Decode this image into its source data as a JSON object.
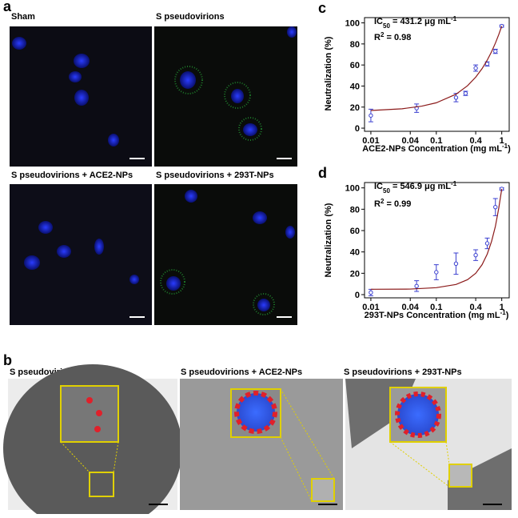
{
  "panels": {
    "a": "a",
    "b": "b",
    "c": "c",
    "d": "d"
  },
  "panel_a": {
    "labels": [
      "Sham",
      "S pseudovirions",
      "S pseudovirions + ACE2-NPs",
      "S pseudovirions + 293T-NPs"
    ]
  },
  "panel_b": {
    "labels": [
      "S pseudovirions",
      "S pseudovirions + ACE2-NPs",
      "S pseudovirions + 293T-NPs"
    ]
  },
  "chart_data": [
    {
      "type": "scatter",
      "xlabel": [
        "ACE2-NPs Concentration (mg mL",
        "-1",
        ")"
      ],
      "ylabel": "Neutralization (%)",
      "annotation": {
        "ic50": [
          "IC",
          "50",
          " = 431.2 μg mL",
          "-1"
        ],
        "r2": [
          "R",
          "2",
          " = 0.98"
        ]
      },
      "log_x": true,
      "xlim": [
        0.008,
        1.3
      ],
      "ylim": [
        -3,
        105
      ],
      "xticks": [
        0.01,
        0.04,
        0.1,
        0.4,
        1
      ],
      "yticks": [
        0,
        20,
        40,
        60,
        80,
        100
      ],
      "series": [
        {
          "color": "#3a3fd0",
          "x": [
            0.01,
            0.05,
            0.2,
            0.28,
            0.4,
            0.6,
            0.8,
            1.0
          ],
          "values": [
            12,
            19,
            29,
            33,
            57,
            61,
            73,
            97
          ],
          "errors": [
            6,
            4,
            4,
            2,
            3,
            2,
            2,
            1
          ]
        },
        {
          "color": "#8b1a1a",
          "x": [
            0.01,
            0.03,
            0.06,
            0.1,
            0.2,
            0.3,
            0.4,
            0.5,
            0.6,
            0.7,
            0.8,
            0.9,
            1.0
          ],
          "values": [
            16.8,
            18.4,
            20.9,
            24.1,
            32.2,
            40.3,
            48.4,
            56.5,
            64.6,
            72.7,
            80.8,
            88.9,
            97
          ]
        }
      ]
    },
    {
      "type": "scatter",
      "xlabel": [
        "293T-NPs Concentration (mg mL",
        "-1",
        ")"
      ],
      "ylabel": "Neutralization (%)",
      "annotation": {
        "ic50": [
          "IC",
          "50",
          " = 546.9 μg mL",
          "-1"
        ],
        "r2": [
          "R",
          "2",
          " = 0.99"
        ]
      },
      "log_x": true,
      "xlim": [
        0.008,
        1.3
      ],
      "ylim": [
        -3,
        105
      ],
      "xticks": [
        0.01,
        0.04,
        0.1,
        0.4,
        1
      ],
      "yticks": [
        0,
        20,
        40,
        60,
        80,
        100
      ],
      "series": [
        {
          "color": "#3a3fd0",
          "x": [
            0.01,
            0.05,
            0.1,
            0.2,
            0.4,
            0.6,
            0.8,
            1.0
          ],
          "values": [
            2,
            8,
            21,
            29,
            37,
            48,
            82,
            99
          ],
          "errors": [
            3,
            5,
            7,
            10,
            5,
            5,
            8,
            1
          ]
        },
        {
          "color": "#8b1a1a",
          "x": [
            0.01,
            0.04,
            0.1,
            0.2,
            0.3,
            0.4,
            0.5,
            0.6,
            0.7,
            0.8,
            0.9,
            1.0
          ],
          "values": [
            5,
            5.2,
            6.5,
            9.5,
            14,
            20,
            28,
            38,
            50,
            64,
            81,
            99
          ]
        }
      ]
    }
  ]
}
